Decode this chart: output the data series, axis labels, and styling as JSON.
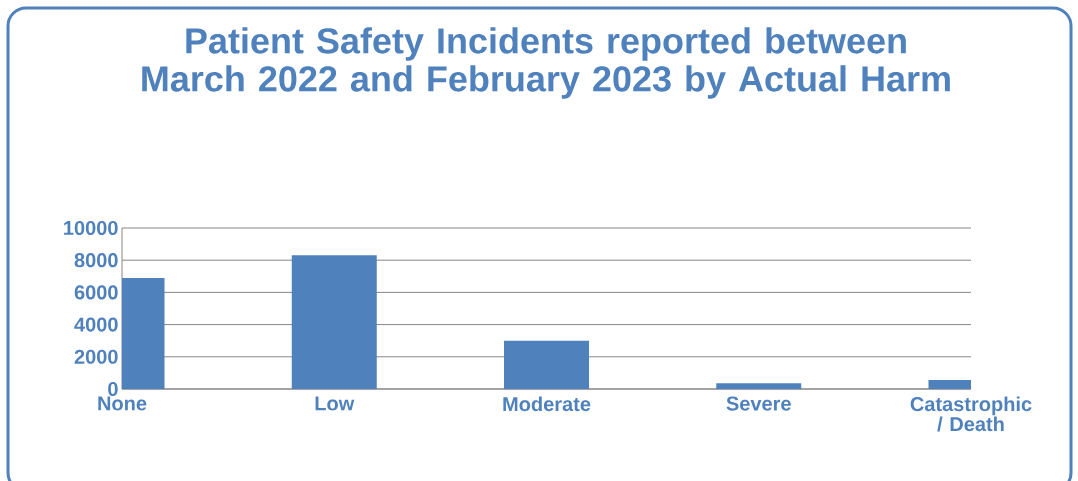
{
  "chart_data": {
    "type": "bar",
    "title": "Patient Safety Incidents reported between March 2022 and February 2023 by Actual Harm",
    "categories": [
      "None",
      "Low",
      "Moderate",
      "Severe",
      "Catastrophic / Death"
    ],
    "values": [
      6900,
      8300,
      3000,
      350,
      560
    ],
    "color": "#4f81bd",
    "ylim": [
      0,
      10000
    ],
    "yticks": [
      0,
      2000,
      4000,
      6000,
      8000,
      10000
    ],
    "grid": "y"
  }
}
